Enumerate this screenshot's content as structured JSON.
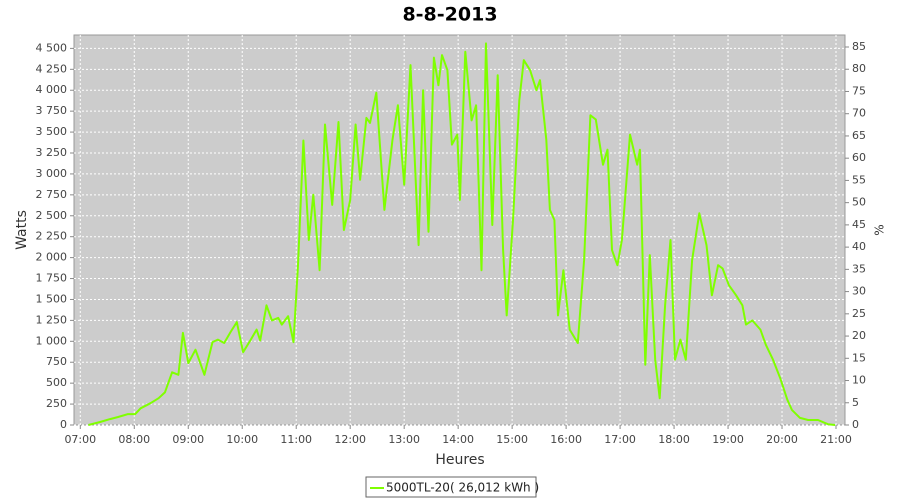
{
  "chart_data": {
    "type": "line",
    "title": "8-8-2013",
    "x_label": "Heures",
    "y_label": "Watts",
    "y2_label": "%",
    "x": [
      "07:09",
      "07:22",
      "07:33",
      "07:42",
      "07:53",
      "08:01",
      "08:07",
      "08:18",
      "08:27",
      "08:34",
      "08:42",
      "08:49",
      "08:54",
      "09:00",
      "09:08",
      "09:18",
      "09:27",
      "09:33",
      "09:40",
      "09:47",
      "09:54",
      "10:01",
      "10:09",
      "10:16",
      "10:20",
      "10:27",
      "10:33",
      "10:40",
      "10:44",
      "10:51",
      "10:57",
      "11:02",
      "11:08",
      "11:14",
      "11:19",
      "11:26",
      "11:32",
      "11:40",
      "11:47",
      "11:53",
      "12:00",
      "12:06",
      "12:11",
      "12:18",
      "12:22",
      "12:29",
      "12:38",
      "12:47",
      "12:53",
      "13:00",
      "13:07",
      "13:16",
      "13:21",
      "13:27",
      "13:33",
      "13:38",
      "13:42",
      "13:48",
      "13:53",
      "13:59",
      "14:02",
      "14:08",
      "14:15",
      "14:20",
      "14:26",
      "14:31",
      "14:38",
      "14:44",
      "14:50",
      "14:54",
      "15:01",
      "15:08",
      "15:13",
      "15:20",
      "15:27",
      "15:31",
      "15:38",
      "15:42",
      "15:47",
      "15:51",
      "15:57",
      "16:04",
      "16:13",
      "16:20",
      "16:27",
      "16:33",
      "16:41",
      "16:46",
      "16:51",
      "16:57",
      "17:02",
      "17:11",
      "17:19",
      "17:22",
      "17:28",
      "17:33",
      "17:39",
      "17:44",
      "17:50",
      "17:56",
      "18:01",
      "18:07",
      "18:13",
      "18:20",
      "18:28",
      "18:36",
      "18:42",
      "18:49",
      "18:54",
      "19:01",
      "19:09",
      "19:16",
      "19:20",
      "19:27",
      "19:36",
      "19:42",
      "19:50",
      "19:58",
      "20:06",
      "20:11",
      "20:20",
      "20:29",
      "20:40",
      "20:51",
      "20:59"
    ],
    "series": [
      {
        "name": "5000TL-20( 26,012 kWh )",
        "color": "#7fff00",
        "values": [
          0,
          36,
          70,
          95,
          130,
          130,
          200,
          260,
          320,
          390,
          630,
          600,
          1100,
          740,
          900,
          600,
          990,
          1020,
          980,
          1110,
          1230,
          870,
          1010,
          1140,
          1010,
          1430,
          1250,
          1280,
          1200,
          1300,
          990,
          1910,
          3400,
          2210,
          2750,
          1850,
          3590,
          2630,
          3620,
          2330,
          2690,
          3590,
          2930,
          3670,
          3610,
          3970,
          2570,
          3410,
          3820,
          2870,
          4300,
          2150,
          4000,
          2310,
          4390,
          4060,
          4420,
          4240,
          3350,
          3470,
          2690,
          4460,
          3640,
          3820,
          1850,
          4560,
          2390,
          4180,
          2090,
          1310,
          2450,
          3880,
          4360,
          4240,
          4000,
          4120,
          3410,
          2570,
          2450,
          1310,
          1850,
          1140,
          980,
          1970,
          3700,
          3650,
          3110,
          3290,
          2090,
          1910,
          2210,
          3470,
          3110,
          3290,
          720,
          2030,
          780,
          320,
          1430,
          2210,
          780,
          1020,
          780,
          1970,
          2530,
          2150,
          1550,
          1910,
          1870,
          1670,
          1550,
          1430,
          1200,
          1250,
          1140,
          960,
          780,
          560,
          300,
          180,
          85,
          60,
          60,
          10,
          0
        ]
      }
    ],
    "xlim": [
      "06:53",
      "21:10"
    ],
    "xticks": [
      "07:00",
      "08:00",
      "09:00",
      "10:00",
      "11:00",
      "12:00",
      "13:00",
      "14:00",
      "15:00",
      "16:00",
      "17:00",
      "18:00",
      "19:00",
      "20:00",
      "21:00"
    ],
    "ylim": [
      0,
      4660
    ],
    "yticks": [
      0,
      250,
      500,
      750,
      {
        "value": 1000,
        "label": "1 000"
      },
      {
        "value": 1250,
        "label": "1 250"
      },
      {
        "value": 1500,
        "label": "1 500"
      },
      {
        "value": 1750,
        "label": "1 750"
      },
      {
        "value": 2000,
        "label": "2 000"
      },
      {
        "value": 2250,
        "label": "2 250"
      },
      {
        "value": 2500,
        "label": "2 500"
      },
      {
        "value": 2750,
        "label": "2 750"
      },
      {
        "value": 3000,
        "label": "3 000"
      },
      {
        "value": 3250,
        "label": "3 250"
      },
      {
        "value": 3500,
        "label": "3 500"
      },
      {
        "value": 3750,
        "label": "3 750"
      },
      {
        "value": 4000,
        "label": "4 000"
      },
      {
        "value": 4250,
        "label": "4 250"
      },
      {
        "value": 4500,
        "label": "4 500"
      }
    ],
    "y2lim": [
      0,
      87.7
    ],
    "y2ticks": [
      0,
      5,
      10,
      15,
      20,
      25,
      30,
      35,
      40,
      45,
      50,
      55,
      60,
      65,
      70,
      75,
      80,
      85
    ],
    "grid": true,
    "legend": "bottom"
  }
}
